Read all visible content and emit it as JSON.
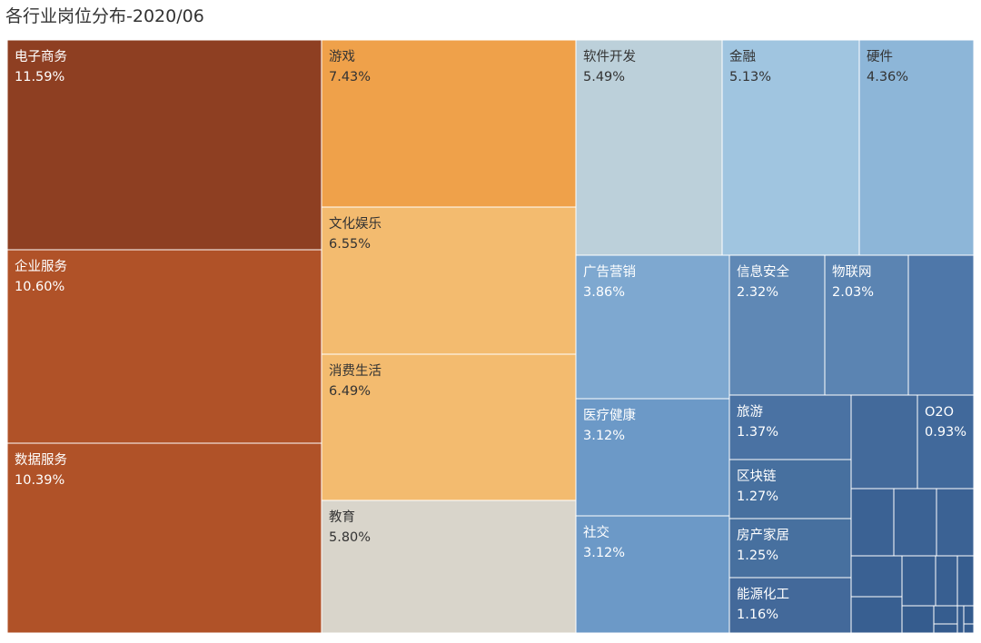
{
  "chart_data": {
    "type": "treemap",
    "title": "各行业岗位分布-2020/06",
    "items": [
      {
        "name": "电子商务",
        "value": "11.59%",
        "color": "#8e3f22"
      },
      {
        "name": "企业服务",
        "value": "10.60%",
        "color": "#b05228"
      },
      {
        "name": "数据服务",
        "value": "10.39%",
        "color": "#b05228"
      },
      {
        "name": "游戏",
        "value": "7.43%",
        "color": "#efa14a"
      },
      {
        "name": "文化娱乐",
        "value": "6.55%",
        "color": "#f3bb6f"
      },
      {
        "name": "消费生活",
        "value": "6.49%",
        "color": "#f3bb6f"
      },
      {
        "name": "教育",
        "value": "5.80%",
        "color": "#d9d5cb"
      },
      {
        "name": "软件开发",
        "value": "5.49%",
        "color": "#bcd0da"
      },
      {
        "name": "金融",
        "value": "5.13%",
        "color": "#a0c5e0"
      },
      {
        "name": "硬件",
        "value": "4.36%",
        "color": "#8db6d8"
      },
      {
        "name": "广告营销",
        "value": "3.86%",
        "color": "#7ea8d0"
      },
      {
        "name": "信息安全",
        "value": "2.32%",
        "color": "#5f88b5"
      },
      {
        "name": "物联网",
        "value": "2.03%",
        "color": "#5b84b2"
      },
      {
        "name": "医疗健康",
        "value": "3.12%",
        "color": "#6c99c7"
      },
      {
        "name": "社交",
        "value": "3.12%",
        "color": "#6c99c7"
      },
      {
        "name": "旅游",
        "value": "1.37%",
        "color": "#4a72a3"
      },
      {
        "name": "O2O",
        "value": "0.93%",
        "color": "#41699b"
      },
      {
        "name": "区块链",
        "value": "1.27%",
        "color": "#47709f"
      },
      {
        "name": "房产家居",
        "value": "1.25%",
        "color": "#47709f"
      },
      {
        "name": "能源化工",
        "value": "1.16%",
        "color": "#43699a"
      },
      {
        "name": "",
        "value": "",
        "color": "#4e77a9"
      },
      {
        "name": "",
        "value": "",
        "color": "#436a9b"
      },
      {
        "name": "",
        "value": "",
        "color": "#3b6294"
      },
      {
        "name": "",
        "value": "",
        "color": "#3b6294"
      },
      {
        "name": "",
        "value": "",
        "color": "#3b6294"
      },
      {
        "name": "",
        "value": "",
        "color": "#3a6193"
      },
      {
        "name": "",
        "value": "",
        "color": "#385f91"
      },
      {
        "name": "",
        "value": "",
        "color": "#385f91"
      },
      {
        "name": "",
        "value": "",
        "color": "#385f91"
      },
      {
        "name": "",
        "value": "",
        "color": "#365d8f"
      },
      {
        "name": "",
        "value": "",
        "color": "#355c8e"
      },
      {
        "name": "",
        "value": "",
        "color": "#365d8f"
      },
      {
        "name": "",
        "value": "",
        "color": "#345b8d"
      },
      {
        "name": "",
        "value": "",
        "color": "#345b8d"
      },
      {
        "name": "",
        "value": "",
        "color": "#345b8d"
      },
      {
        "name": "",
        "value": "",
        "color": "#345b8d"
      }
    ]
  }
}
